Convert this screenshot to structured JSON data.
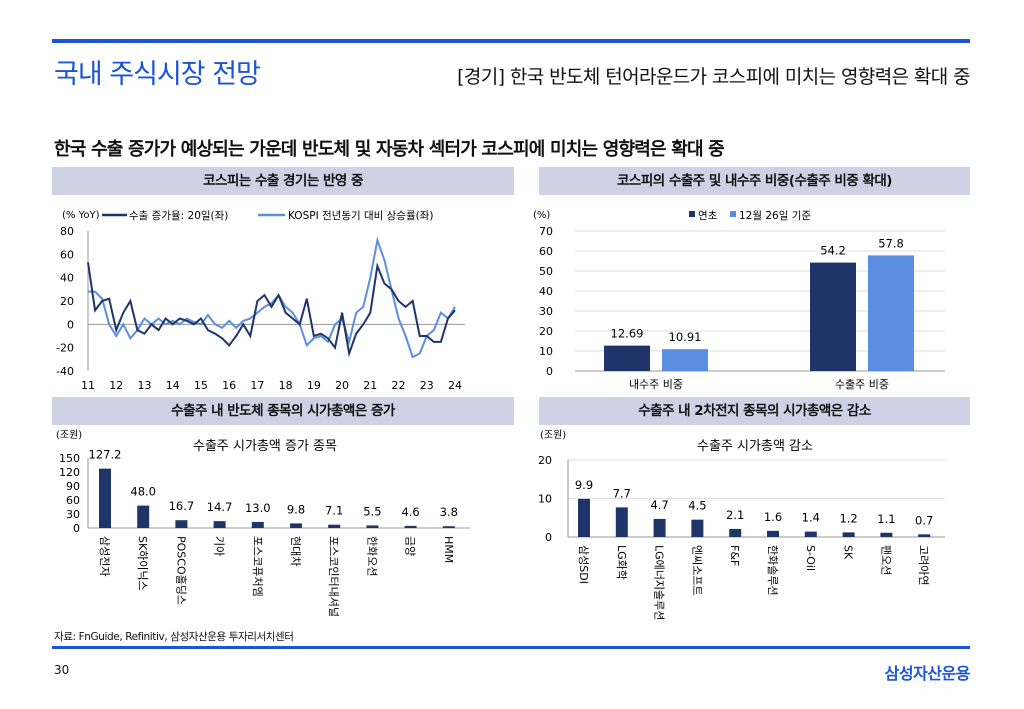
{
  "header": {
    "title": "국내 주식시장 전망",
    "right_title": "[경기] 한국 반도체 턴어라운드가 코스피에 미치는 영향력은 확대 중",
    "subtitle": "한국 수출 증가가 예상되는 가운데 반도체 및 자동차 섹터가 코스피에 미치는 영향력은 확대 중"
  },
  "panels": {
    "top_left": "코스피는 수출 경기는 반영 중",
    "top_right": "코스피의 수출주 및 내수주 비중(수출주 비중 확대)",
    "bottom_left": "수출주 내 반도체 종목의 시가총액은 증가",
    "bottom_right": "수출주 내 2차전지 종목의 시가총액은 감소"
  },
  "footer": {
    "source": "자료: FnGuide, Refinitiv, 삼성자산운용 투자리서치센터",
    "page": "30",
    "logo": "삼성자산운용"
  },
  "colors": {
    "accent": "#1a55d6",
    "dark": "#1f3468",
    "light": "#5b8de0",
    "band": "#cdd3e4"
  },
  "chart_data": [
    {
      "type": "line",
      "ylabel": "(% YoY)",
      "ylim": [
        -40,
        80
      ],
      "yticks": [
        "80",
        "60",
        "40",
        "20",
        "0",
        "-20",
        "-40"
      ],
      "xticks": [
        "11",
        "12",
        "13",
        "14",
        "15",
        "16",
        "17",
        "18",
        "19",
        "20",
        "21",
        "22",
        "23",
        "24"
      ],
      "x": [
        11,
        11.25,
        11.5,
        11.75,
        12,
        12.25,
        12.5,
        12.75,
        13,
        13.25,
        13.5,
        13.75,
        14,
        14.25,
        14.5,
        14.75,
        15,
        15.25,
        15.5,
        15.75,
        16,
        16.25,
        16.5,
        16.75,
        17,
        17.25,
        17.5,
        17.75,
        18,
        18.25,
        18.5,
        18.75,
        19,
        19.25,
        19.5,
        19.75,
        20,
        20.25,
        20.5,
        20.75,
        21,
        21.25,
        21.5,
        21.75,
        22,
        22.25,
        22.5,
        22.75,
        23,
        23.25,
        23.5,
        23.75,
        24
      ],
      "series": [
        {
          "name": "수출 증가율: 20일(좌)",
          "values": [
            53,
            12,
            20,
            22,
            -5,
            10,
            20,
            -5,
            -8,
            0,
            -5,
            5,
            0,
            5,
            3,
            0,
            5,
            -5,
            -8,
            -12,
            -18,
            -10,
            0,
            -10,
            20,
            25,
            15,
            25,
            10,
            5,
            0,
            22,
            -10,
            -8,
            -12,
            -20,
            10,
            -25,
            -8,
            0,
            10,
            50,
            35,
            30,
            20,
            15,
            20,
            -10,
            -10,
            -15,
            -15,
            5,
            12
          ]
        },
        {
          "name": "KOSPI 전년동기 대비 상승률(좌)",
          "values": [
            28,
            28,
            22,
            0,
            -10,
            0,
            -12,
            -5,
            5,
            0,
            5,
            0,
            3,
            0,
            5,
            2,
            0,
            8,
            0,
            -3,
            3,
            -3,
            3,
            5,
            10,
            15,
            18,
            25,
            15,
            10,
            0,
            -18,
            -12,
            -10,
            -15,
            0,
            5,
            -15,
            10,
            15,
            40,
            72,
            55,
            30,
            5,
            -10,
            -28,
            -25,
            -10,
            -5,
            10,
            5,
            15
          ]
        }
      ]
    },
    {
      "type": "bar",
      "ylabel": "(%)",
      "ylim": [
        0,
        70
      ],
      "yticks": [
        "70",
        "60",
        "50",
        "40",
        "30",
        "20",
        "10",
        "0"
      ],
      "categories": [
        "내수주 비중",
        "수출주 비중"
      ],
      "series": [
        {
          "name": "연초",
          "values": [
            12.69,
            54.2
          ],
          "labels": [
            "12.69",
            "54.2"
          ]
        },
        {
          "name": "12월 26일 기준",
          "values": [
            10.91,
            57.8
          ],
          "labels": [
            "10.91",
            "57.8"
          ]
        }
      ]
    },
    {
      "type": "bar",
      "title": "수출주 시가총액 증가 종목",
      "ylabel": "(조원)",
      "ylim": [
        0,
        150
      ],
      "yticks": [
        "150",
        "120",
        "90",
        "60",
        "30",
        "0"
      ],
      "categories": [
        "삼성전자",
        "SK하이닉스",
        "POSCO홀딩스",
        "기아",
        "포스코퓨처엠",
        "현대차",
        "포스코인터내셔널",
        "한화오션",
        "금양",
        "HMM"
      ],
      "values": [
        127.2,
        48.0,
        16.7,
        14.7,
        13.0,
        9.8,
        7.1,
        5.5,
        4.6,
        3.8
      ],
      "labels": [
        "127.2",
        "48.0",
        "16.7",
        "14.7",
        "13.0",
        "9.8",
        "7.1",
        "5.5",
        "4.6",
        "3.8"
      ]
    },
    {
      "type": "bar",
      "title": "수출주 시가총액 감소",
      "ylabel": "(조원)",
      "ylim": [
        0,
        20
      ],
      "yticks": [
        "20",
        "10",
        "0"
      ],
      "categories": [
        "삼성SDI",
        "LG화학",
        "LG에너지솔루션",
        "엔씨소프트",
        "F&F",
        "한화솔루션",
        "S-Oil",
        "SK",
        "팬오션",
        "고려아연"
      ],
      "values": [
        9.9,
        7.7,
        4.7,
        4.5,
        2.1,
        1.6,
        1.4,
        1.2,
        1.1,
        0.7
      ],
      "labels": [
        "9.9",
        "7.7",
        "4.7",
        "4.5",
        "2.1",
        "1.6",
        "1.4",
        "1.2",
        "1.1",
        "0.7"
      ]
    }
  ]
}
